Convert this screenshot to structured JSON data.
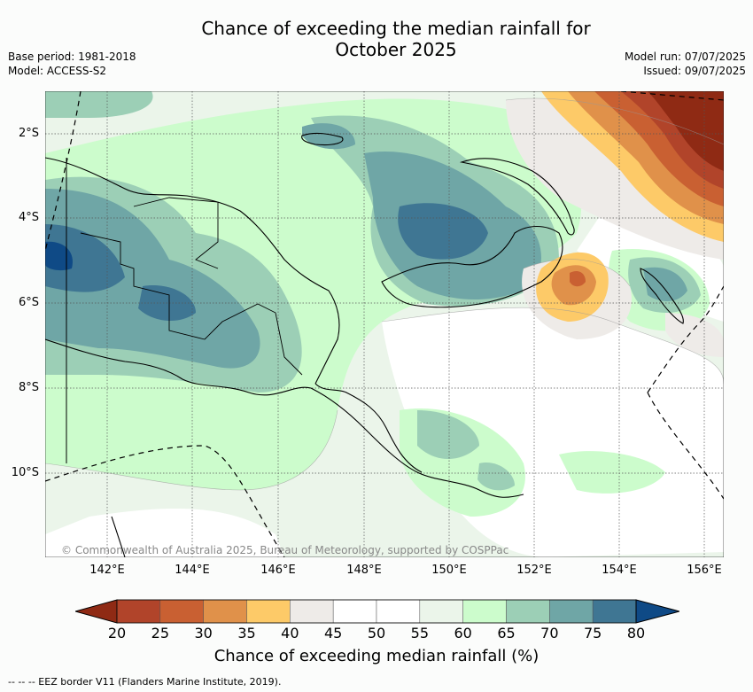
{
  "title_line1": "Chance of exceeding the median rainfall for",
  "title_line2": "October 2025",
  "base_period": "Base period: 1981-2018",
  "model": "Model: ACCESS-S2",
  "model_run": "Model run: 07/07/2025",
  "issued": "Issued: 09/07/2025",
  "map": {
    "lat_labels": [
      "2°S",
      "4°S",
      "6°S",
      "8°S",
      "10°S"
    ],
    "lon_labels": [
      "142°E",
      "144°E",
      "146°E",
      "148°E",
      "150°E",
      "152°E",
      "154°E",
      "156°E"
    ],
    "copyright": "© Commonwealth of Australia 2025, Bureau of Meteorology, supported by COSPPac"
  },
  "colorbar": {
    "title": "Chance of exceeding median rainfall (%)",
    "ticks": [
      "20",
      "25",
      "30",
      "35",
      "40",
      "45",
      "50",
      "55",
      "60",
      "65",
      "70",
      "75",
      "80"
    ],
    "colors": [
      "#8f2a14",
      "#b1442a",
      "#c96032",
      "#e0914a",
      "#fdca68",
      "#eeebe8",
      "#ffffff",
      "#ffffff",
      "#ebf5ea",
      "#ccfccc",
      "#9ccfb6",
      "#6fa6a6",
      "#3f7693",
      "#0f4a86"
    ]
  },
  "footer": "-- -- -- EEZ border V11 (Flanders Marine Institute, 2019)."
}
